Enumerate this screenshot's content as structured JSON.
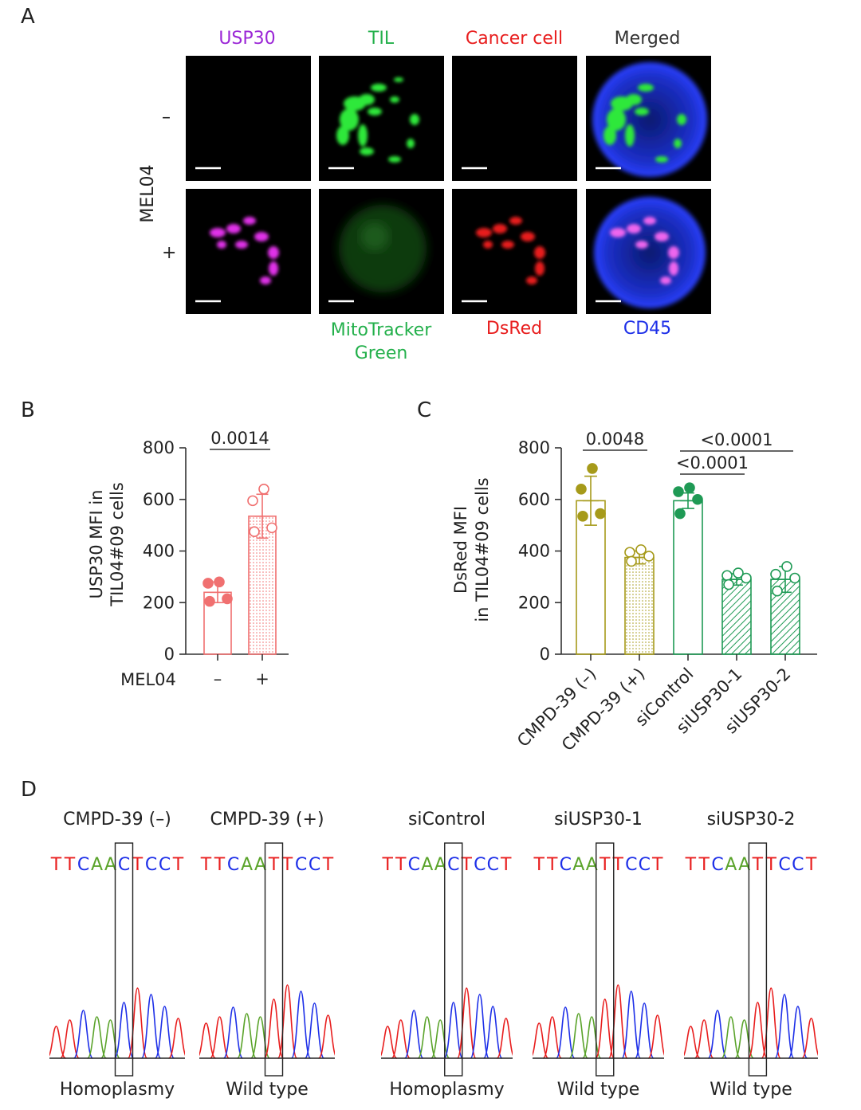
{
  "panel_A": {
    "letter": "A",
    "columns": [
      {
        "label": "USP30",
        "color": "#9b27d6"
      },
      {
        "label": "TIL",
        "color": "#23b04b"
      },
      {
        "label": "Cancer cell",
        "color": "#e81d1d"
      },
      {
        "label": "Merged",
        "color": "#333333"
      }
    ],
    "row_group_label": "MEL04",
    "rows": [
      "–",
      "+"
    ],
    "bottom_labels": [
      {
        "label_line1": "MitoTracker",
        "label_line2": "Green",
        "color": "#23b04b"
      },
      {
        "label_line1": "DsRed",
        "color": "#e81d1d"
      },
      {
        "label_line1": "CD45",
        "color": "#1d2fe8"
      }
    ]
  },
  "panel_B": {
    "letter": "B",
    "pvalue": "0.0014",
    "xaxis_title": "MEL04",
    "ylabel_line1": "USP30 MFI in",
    "ylabel_line2": "TIL04#09 cells"
  },
  "panel_C": {
    "letter": "C",
    "pvalues": [
      "0.0048",
      "<0.0001",
      "<0.0001"
    ],
    "ylabel_line1": "DsRed MFI",
    "ylabel_line2": "in TIL04#09 cells"
  },
  "panel_D": {
    "letter": "D",
    "samples": [
      {
        "title": "CMPD-39 (–)",
        "sequence": [
          "T",
          "T",
          "C",
          "A",
          "A",
          "C",
          "T",
          "C",
          "C",
          "T"
        ],
        "status": "Homoplasmy"
      },
      {
        "title": "CMPD-39 (+)",
        "sequence": [
          "T",
          "T",
          "C",
          "A",
          "A",
          "T",
          "T",
          "C",
          "C",
          "T"
        ],
        "status": "Wild type"
      },
      {
        "title": "siControl",
        "sequence": [
          "T",
          "T",
          "C",
          "A",
          "A",
          "C",
          "T",
          "C",
          "C",
          "T"
        ],
        "status": "Homoplasmy"
      },
      {
        "title": "siUSP30-1",
        "sequence": [
          "T",
          "T",
          "C",
          "A",
          "A",
          "T",
          "T",
          "C",
          "C",
          "T"
        ],
        "status": "Wild type"
      },
      {
        "title": "siUSP30-2",
        "sequence": [
          "T",
          "T",
          "C",
          "A",
          "A",
          "T",
          "T",
          "C",
          "C",
          "T"
        ],
        "status": "Wild type"
      }
    ],
    "base_colors": {
      "T": "#e81d1d",
      "C": "#1d2fe8",
      "A": "#5aa32a",
      "G": "#111111"
    }
  },
  "chart_data": [
    {
      "type": "bar",
      "panel": "B",
      "categories": [
        "–",
        "+"
      ],
      "values": [
        240,
        535
      ],
      "errors": [
        40,
        85
      ],
      "points": [
        [
          280,
          275,
          215,
          205
        ],
        [
          640,
          595,
          490,
          475
        ]
      ],
      "ylabel": "USP30 MFI in TIL04#09 cells",
      "xlabel": "MEL04",
      "ylim": [
        0,
        800
      ],
      "yticks": [
        0,
        200,
        400,
        600,
        800
      ],
      "colors": [
        "#f07070",
        "#f07070"
      ],
      "fills": [
        "open",
        "dotted"
      ],
      "significance": [
        {
          "pair": [
            0,
            1
          ],
          "label": "0.0014"
        }
      ]
    },
    {
      "type": "bar",
      "panel": "C",
      "categories": [
        "CMPD-39 (–)",
        "CMPD-39 (+)",
        "siControl",
        "siUSP30-1",
        "siUSP30-2"
      ],
      "values": [
        595,
        375,
        595,
        290,
        290
      ],
      "errors": [
        95,
        25,
        30,
        22,
        50
      ],
      "points": [
        [
          720,
          640,
          545,
          535
        ],
        [
          405,
          395,
          380,
          360
        ],
        [
          645,
          630,
          600,
          545
        ],
        [
          315,
          305,
          295,
          270
        ],
        [
          340,
          310,
          295,
          245
        ]
      ],
      "ylabel": "DsRed MFI in TIL04#09 cells",
      "ylim": [
        0,
        800
      ],
      "yticks": [
        0,
        200,
        400,
        600,
        800
      ],
      "colors": [
        "#a69a1a",
        "#a69a1a",
        "#1f9a55",
        "#1f9a55",
        "#1f9a55"
      ],
      "fills": [
        "open",
        "dotted",
        "open",
        "hatched",
        "hatched"
      ],
      "point_style": [
        "filled",
        "open",
        "filled",
        "open",
        "open"
      ],
      "significance": [
        {
          "pair": [
            0,
            1
          ],
          "label": "0.0048"
        },
        {
          "pair": [
            2,
            3
          ],
          "label": "<0.0001"
        },
        {
          "pair": [
            2,
            4
          ],
          "label": "<0.0001"
        }
      ]
    }
  ]
}
